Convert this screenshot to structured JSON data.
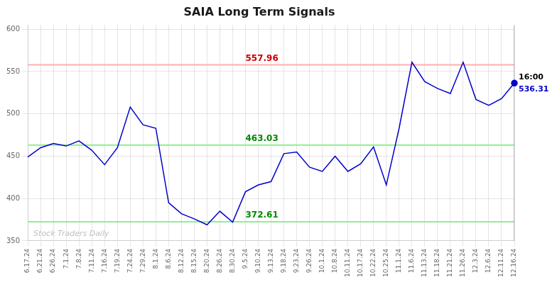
{
  "chart_data": {
    "type": "line",
    "title": "SAIA Long Term Signals",
    "categories": [
      "6.17.24",
      "6.21.24",
      "6.26.24",
      "7.1.24",
      "7.8.24",
      "7.11.24",
      "7.16.24",
      "7.19.24",
      "7.24.24",
      "7.29.24",
      "8.1.24",
      "8.6.24",
      "8.12.24",
      "8.15.24",
      "8.20.24",
      "8.26.24",
      "8.30.24",
      "9.5.24",
      "9.10.24",
      "9.13.24",
      "9.18.24",
      "9.23.24",
      "9.26.24",
      "10.1.24",
      "10.8.24",
      "10.11.24",
      "10.17.24",
      "10.22.24",
      "10.25.24",
      "11.1.24",
      "11.6.24",
      "11.13.24",
      "11.18.24",
      "11.21.24",
      "11.26.24",
      "12.3.24",
      "12.6.24",
      "12.11.24",
      "12.16.24"
    ],
    "values": [
      449,
      460,
      465,
      462,
      468,
      457,
      440,
      460,
      508,
      487,
      483,
      395,
      382,
      376,
      369,
      385,
      372,
      408,
      416,
      420,
      453,
      455,
      437,
      432,
      450,
      432,
      441,
      461,
      416,
      483,
      561,
      538,
      530,
      524,
      561,
      517,
      510,
      518,
      536.31
    ],
    "color": "#0000cc",
    "ylim": [
      350,
      605
    ],
    "yticks": [
      350,
      400,
      450,
      500,
      550,
      600
    ],
    "grid": true,
    "reference_lines": [
      {
        "y": 557.96,
        "label": "557.96",
        "color": "#ffb0b0",
        "label_color": "#cc0000"
      },
      {
        "y": 463.03,
        "label": "463.03",
        "color": "#90ee90",
        "label_color": "#008800"
      },
      {
        "y": 372.61,
        "label": "372.61",
        "color": "#90ee90",
        "label_color": "#008800"
      }
    ],
    "annotations": [
      {
        "text": "16:00",
        "color": "#000000"
      },
      {
        "text": "536.31",
        "color": "#0000cc"
      }
    ],
    "watermark": {
      "text": "Stock Traders Daily",
      "color": "#c0c0c0"
    },
    "vline_color": "#777777"
  }
}
